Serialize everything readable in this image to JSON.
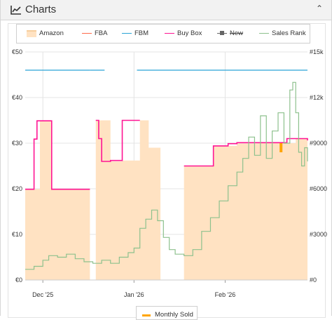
{
  "header": {
    "title": "Charts",
    "icon": "line-chart-icon",
    "toggle_icon": "chevron-up-icon"
  },
  "legend": [
    {
      "label": "Amazon",
      "color": "#ffe2c2",
      "style": "area"
    },
    {
      "label": "FBA",
      "color": "#ff6a4a",
      "style": "line"
    },
    {
      "label": "FBM",
      "color": "#2aa4d6",
      "style": "line"
    },
    {
      "label": "Buy Box",
      "color": "#ff1493",
      "style": "line"
    },
    {
      "label": "New",
      "color": "#666666",
      "style": "square-line",
      "disabled": true
    },
    {
      "label": "Sales Rank",
      "color": "#8dc18d",
      "style": "line"
    }
  ],
  "secondary_legend": {
    "label": "Monthly Sold",
    "color": "#ffa500"
  },
  "chart_data": {
    "type": "line",
    "x_type": "date",
    "x_ticks": [
      "Dec '25",
      "Jan '26",
      "Feb '26"
    ],
    "y_left": {
      "ticks": [
        "€0",
        "€10",
        "€20",
        "€30",
        "€40",
        "€50"
      ],
      "range": [
        0,
        50
      ]
    },
    "y_right": {
      "ticks": [
        "#0",
        "#3000",
        "#6000",
        "#9000",
        "#12k",
        "#15k"
      ],
      "range": [
        0,
        15000
      ]
    },
    "grid": true,
    "legend_position": "top",
    "series": [
      {
        "name": "Amazon",
        "type": "area",
        "axis": "left",
        "color": "#ffe2c2",
        "segments": [
          [
            [
              "2025-11-25",
              19.9
            ],
            [
              "2025-11-30",
              34.9
            ],
            [
              "2025-12-04",
              19.9
            ],
            [
              "2025-12-17",
              0
            ]
          ],
          [
            [
              "2025-12-19",
              35.0
            ],
            [
              "2025-12-24",
              26.0
            ],
            [
              "2025-12-28",
              26.2
            ],
            [
              "2026-01-03",
              35.0
            ],
            [
              "2026-01-06",
              29.0
            ],
            [
              "2026-01-10",
              0
            ]
          ],
          [
            [
              "2026-01-18",
              25.0
            ],
            [
              "2026-01-28",
              29.4
            ],
            [
              "2026-02-05",
              29.9
            ],
            [
              "2026-02-12",
              30.0
            ],
            [
              "2026-02-21",
              30.0
            ],
            [
              "2026-02-25",
              31.0
            ],
            [
              "2026-03-01",
              31.0
            ]
          ]
        ]
      },
      {
        "name": "Buy Box",
        "type": "step",
        "axis": "left",
        "color": "#ff1493",
        "segments": [
          [
            [
              "2025-11-25",
              19.9
            ],
            [
              "2025-11-28",
              30.9
            ],
            [
              "2025-11-29",
              34.9
            ],
            [
              "2025-12-04",
              19.9
            ],
            [
              "2025-12-17",
              19.9
            ]
          ],
          [
            [
              "2025-12-19",
              35.0
            ],
            [
              "2025-12-20",
              31.0
            ],
            [
              "2025-12-21",
              26.0
            ],
            [
              "2025-12-24",
              26.2
            ],
            [
              "2025-12-28",
              35.0
            ],
            [
              "2026-01-03",
              35.0
            ]
          ],
          [
            [
              "2026-01-18",
              25.0
            ],
            [
              "2026-01-28",
              29.4
            ],
            [
              "2026-02-02",
              29.9
            ],
            [
              "2026-02-05",
              30.1
            ],
            [
              "2026-02-12",
              30.1
            ],
            [
              "2026-02-20",
              30.1
            ],
            [
              "2026-02-22",
              31.0
            ],
            [
              "2026-03-01",
              30.6
            ]
          ]
        ]
      },
      {
        "name": "FBM",
        "type": "step",
        "axis": "left",
        "color": "#2aa4d6",
        "segments": [
          [
            [
              "2025-11-25",
              46.0
            ],
            [
              "2025-12-17",
              46.0
            ]
          ],
          [
            [
              "2025-12-17",
              46.0
            ],
            [
              "2025-12-22",
              46.0
            ]
          ],
          [
            [
              "2026-01-02",
              46.0
            ],
            [
              "2026-03-01",
              46.0
            ]
          ]
        ]
      },
      {
        "name": "Sales Rank",
        "type": "step",
        "axis": "right",
        "color": "#8dc18d",
        "segments": [
          [
            [
              "2025-11-25",
              700
            ],
            [
              "2025-11-28",
              900
            ],
            [
              "2025-12-01",
              1300
            ],
            [
              "2025-12-03",
              1600
            ],
            [
              "2025-12-06",
              1500
            ],
            [
              "2025-12-09",
              1700
            ],
            [
              "2025-12-12",
              1400
            ],
            [
              "2025-12-15",
              1200
            ],
            [
              "2025-12-18",
              1100
            ],
            [
              "2025-12-21",
              1300
            ],
            [
              "2025-12-24",
              1100
            ],
            [
              "2025-12-27",
              1500
            ],
            [
              "2025-12-30",
              1800
            ],
            [
              "2026-01-01",
              2100
            ],
            [
              "2026-01-03",
              3400
            ],
            [
              "2026-01-05",
              4000
            ],
            [
              "2026-01-07",
              4600
            ],
            [
              "2026-01-09",
              3900
            ],
            [
              "2026-01-11",
              2800
            ],
            [
              "2026-01-13",
              2000
            ],
            [
              "2026-01-15",
              1700
            ],
            [
              "2026-01-18",
              1600
            ],
            [
              "2026-01-21",
              2000
            ],
            [
              "2026-01-24",
              3200
            ],
            [
              "2026-01-27",
              4100
            ],
            [
              "2026-01-30",
              5200
            ],
            [
              "2026-02-02",
              6200
            ],
            [
              "2026-02-05",
              7100
            ],
            [
              "2026-02-07",
              8000
            ],
            [
              "2026-02-09",
              9400
            ],
            [
              "2026-02-11",
              8200
            ],
            [
              "2026-02-13",
              10800
            ],
            [
              "2026-02-15",
              8000
            ],
            [
              "2026-02-17",
              9800
            ],
            [
              "2026-02-19",
              11000
            ],
            [
              "2026-02-21",
              9000
            ],
            [
              "2026-02-23",
              12500
            ],
            [
              "2026-02-24",
              13000
            ],
            [
              "2026-02-25",
              11000
            ],
            [
              "2026-02-26",
              8400
            ],
            [
              "2026-02-27",
              7500
            ],
            [
              "2026-02-28",
              8700
            ],
            [
              "2026-03-01",
              7800
            ]
          ]
        ]
      },
      {
        "name": "Monthly Sold",
        "type": "bar",
        "axis": "left",
        "color": "#ffa500",
        "points": [
          [
            "2026-02-20",
            30.0,
            28.0
          ]
        ]
      }
    ]
  }
}
